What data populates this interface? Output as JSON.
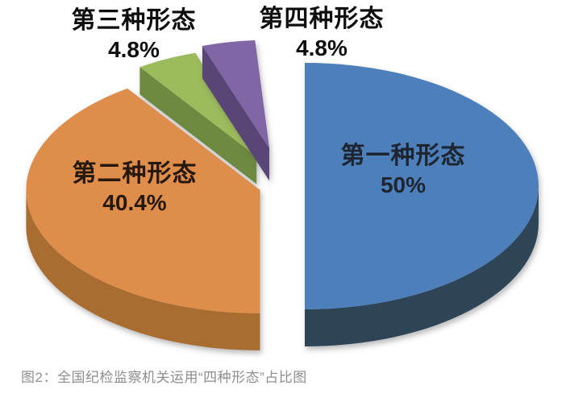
{
  "page": {
    "background": "#ffffff"
  },
  "chart_data": {
    "type": "pie",
    "style": "3d-exploded-pie",
    "direction": "clockwise",
    "start_angle_deg": 0,
    "legend_position": "none",
    "grid": "off",
    "title": "",
    "caption": "图2：全国纪检监察机关运用“四种形态”占比图",
    "caption_color": "#8e8e8e",
    "label_color": "#111111",
    "slices": [
      {
        "label": "第一种形态",
        "pct_label": "50%",
        "value": 50,
        "color": "#4d80ba",
        "side_color": "#2d4459"
      },
      {
        "label": "第二种形态",
        "pct_label": "40.4%",
        "value": 40.4,
        "color": "#df8d4b",
        "side_color": "#a96d30"
      },
      {
        "label": "第三种形态",
        "pct_label": "4.8%",
        "value": 4.8,
        "color": "#9cbb5b",
        "side_color": "#6d8a40"
      },
      {
        "label": "第四种形态",
        "pct_label": "4.8%",
        "value": 4.8,
        "color": "#8066a4",
        "side_color": "#5a4477"
      }
    ]
  }
}
